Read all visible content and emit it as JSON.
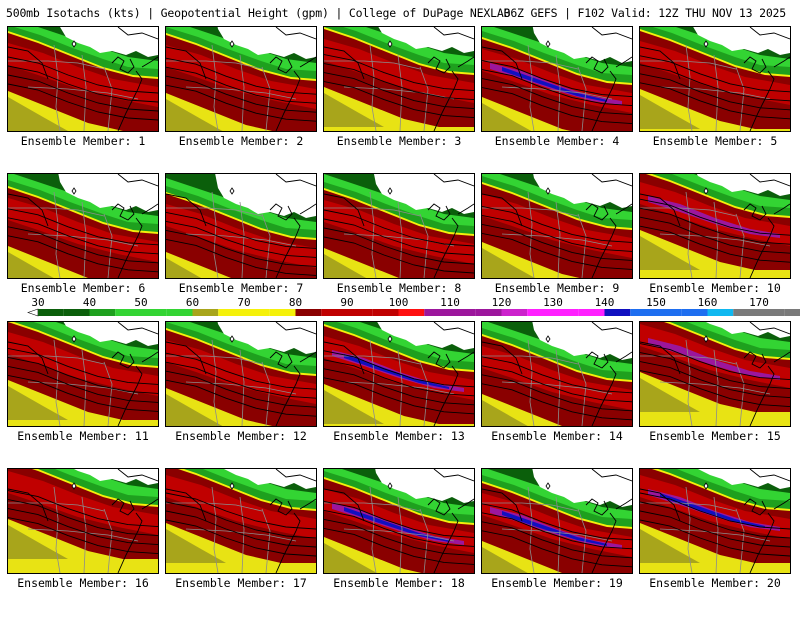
{
  "header": {
    "title": "500mb Isotachs (kts) | Geopotential Height (gpm) | College of DuPage NEXLAB",
    "run_info": "06Z GEFS | F102 Valid: 12Z THU NOV 13 2025"
  },
  "colorbar": {
    "ticks": [
      {
        "value": "30",
        "color": "#0b5f0b"
      },
      {
        "value": "40",
        "color": "#1ea01e"
      },
      {
        "value": "50",
        "color": "#33d433"
      },
      {
        "value": "60",
        "color": "#a8a51b"
      },
      {
        "value": "70",
        "color": "#f5f10a"
      },
      {
        "value": "80",
        "color": "#8a0000"
      },
      {
        "value": "90",
        "color": "#c00000"
      },
      {
        "value": "100",
        "color": "#ff1010"
      },
      {
        "value": "110",
        "color": "#9c169c"
      },
      {
        "value": "120",
        "color": "#cc22cc"
      },
      {
        "value": "130",
        "color": "#ff20ff"
      },
      {
        "value": "140",
        "color": "#1010c0"
      },
      {
        "value": "150",
        "color": "#1e6ef0"
      },
      {
        "value": "160",
        "color": "#10b8f0"
      },
      {
        "value": "170",
        "color": "#7a7a7a"
      }
    ],
    "end_color": "#c8c8c8"
  },
  "panels": [
    {
      "label": "Ensemble Member: 1"
    },
    {
      "label": "Ensemble Member: 2"
    },
    {
      "label": "Ensemble Member: 3"
    },
    {
      "label": "Ensemble Member: 4"
    },
    {
      "label": "Ensemble Member: 5"
    },
    {
      "label": "Ensemble Member: 6"
    },
    {
      "label": "Ensemble Member: 7"
    },
    {
      "label": "Ensemble Member: 8"
    },
    {
      "label": "Ensemble Member: 9"
    },
    {
      "label": "Ensemble Member: 10"
    },
    {
      "label": "Ensemble Member: 11"
    },
    {
      "label": "Ensemble Member: 12"
    },
    {
      "label": "Ensemble Member: 13"
    },
    {
      "label": "Ensemble Member: 14"
    },
    {
      "label": "Ensemble Member: 15"
    },
    {
      "label": "Ensemble Member: 16"
    },
    {
      "label": "Ensemble Member: 17"
    },
    {
      "label": "Ensemble Member: 18"
    },
    {
      "label": "Ensemble Member: 19"
    },
    {
      "label": "Ensemble Member: 20"
    }
  ]
}
